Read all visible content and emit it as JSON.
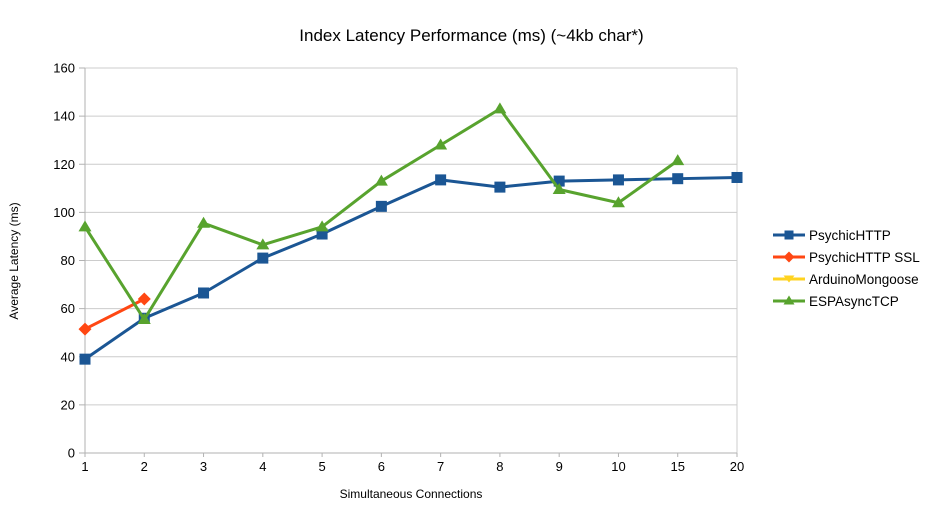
{
  "chart_data": {
    "type": "line",
    "title": "Index Latency Performance (ms) (~4kb char*)",
    "xlabel": "Simultaneous Connections",
    "ylabel": "Average Latency (ms)",
    "categories": [
      "1",
      "2",
      "3",
      "4",
      "5",
      "6",
      "7",
      "8",
      "9",
      "10",
      "15",
      "20"
    ],
    "ylim": [
      0,
      160
    ],
    "ytick_step": 20,
    "grid": "horizontal",
    "legend_position": "right",
    "series": [
      {
        "name": "PsychicHTTP",
        "color": "#1B5694",
        "marker": "square",
        "values": [
          39,
          56,
          66.5,
          81,
          91,
          102.5,
          113.5,
          110.5,
          113,
          113.5,
          114,
          114.5
        ]
      },
      {
        "name": "PsychicHTTP SSL",
        "color": "#FF4713",
        "marker": "diamond",
        "values": [
          51.5,
          64,
          null,
          null,
          null,
          null,
          null,
          null,
          null,
          null,
          null,
          null
        ]
      },
      {
        "name": "ArduinoMongoose",
        "color": "#FFD320",
        "marker": "triangle-down",
        "values": [
          null,
          null,
          null,
          null,
          null,
          null,
          null,
          null,
          null,
          null,
          null,
          null
        ]
      },
      {
        "name": "ESPAsyncTCP",
        "color": "#58A32E",
        "marker": "triangle-up",
        "values": [
          94,
          55.5,
          95.5,
          86.5,
          94,
          113,
          128,
          143,
          109.5,
          104,
          121.5,
          null
        ]
      }
    ],
    "axis_color": "#B2B2B2",
    "grid_color": "#CCCCCC",
    "text_color": "#000000"
  }
}
